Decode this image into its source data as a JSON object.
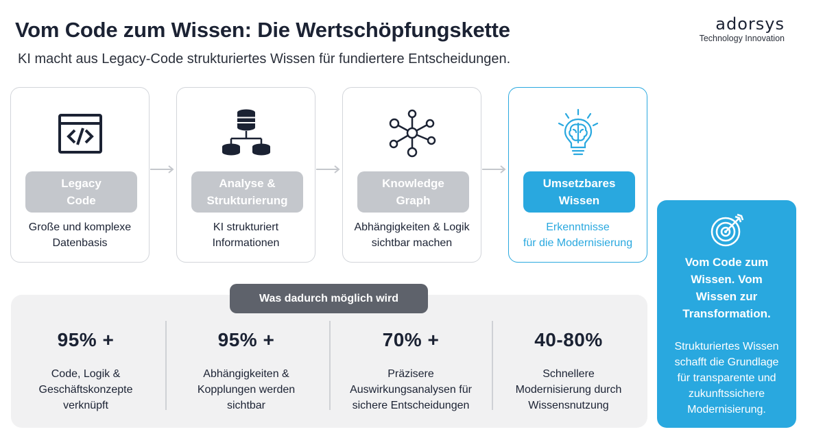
{
  "header": {
    "title": "Vom Code zum Wissen: Die Wertschöpfungskette",
    "subtitle": "KI macht aus Legacy-Code strukturiertes Wissen für fundiertere Entscheidungen."
  },
  "brand": {
    "name": "adorsys",
    "tagline": "Technology Innovation"
  },
  "steps": [
    {
      "label_line1": "Legacy",
      "label_line2": "Code",
      "desc_line1": "Große und komplexe",
      "desc_line2": "Datenbasis",
      "icon": "code-window-icon"
    },
    {
      "label_line1": "Analyse &",
      "label_line2": "Strukturierung",
      "desc_line1": "KI strukturiert",
      "desc_line2": "Informationen",
      "icon": "database-hierarchy-icon"
    },
    {
      "label_line1": "Knowledge",
      "label_line2": "Graph",
      "desc_line1": "Abhängigkeiten & Logik",
      "desc_line2": "sichtbar machen",
      "icon": "network-graph-icon"
    },
    {
      "label_line1": "Umsetzbares",
      "label_line2": "Wissen",
      "desc_line1": "Erkenntnisse",
      "desc_line2": "für die Modernisierung",
      "icon": "brain-lightbulb-icon"
    }
  ],
  "stats_section": {
    "label": "Was dadurch möglich wird",
    "items": [
      {
        "value": "95% +",
        "line1": "Code, Logik &",
        "line2": "Geschäftskonzepte",
        "line3": "verknüpft"
      },
      {
        "value": "95% +",
        "line1": "Abhängigkeiten &",
        "line2": "Kopplungen werden",
        "line3": "sichtbar"
      },
      {
        "value": "70% +",
        "line1": "Präzisere",
        "line2": "Auswirkungsanalysen für",
        "line3": "sichere Entscheidungen"
      },
      {
        "value": "40-80%",
        "line1": "Schnellere",
        "line2": "Modernisierung durch",
        "line3": "Wissensnutzung"
      }
    ]
  },
  "callout": {
    "icon": "target-icon",
    "head_line1": "Vom Code zum",
    "head_line2": "Wissen. Vom",
    "head_line3": "Wissen zur",
    "head_line4": "Transformation.",
    "body_line1": "Strukturiertes Wissen",
    "body_line2": "schafft die Grundlage",
    "body_line3": "für transparente und",
    "body_line4": "zukunftssichere",
    "body_line5": "Modernisierung."
  },
  "colors": {
    "accent": "#29a8df",
    "pill_gray": "#c4c7cc",
    "label_dark": "#5e626b",
    "panel": "#f1f1f2",
    "text": "#1b2233"
  }
}
